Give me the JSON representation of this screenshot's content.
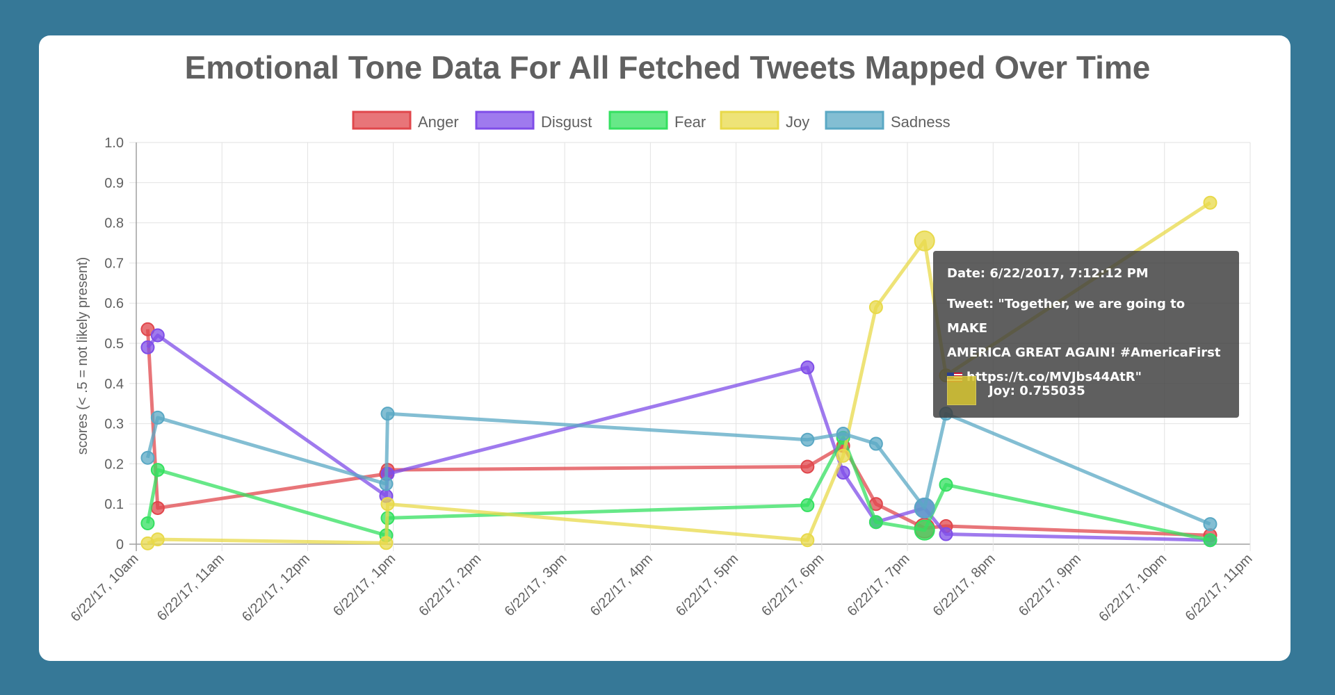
{
  "chart_data": {
    "type": "line",
    "title": "Emotional Tone Data For All Fetched Tweets Mapped Over Time",
    "ylabel": "scores (< .5 = not likely present)",
    "xlabel": "",
    "ylim": [
      0,
      1.0
    ],
    "yticks": [
      "0",
      "0.1",
      "0.2",
      "0.3",
      "0.4",
      "0.5",
      "0.6",
      "0.7",
      "0.8",
      "0.9",
      "1.0"
    ],
    "xticks": [
      "6/22/17, 10am",
      "6/22/17, 11am",
      "6/22/17, 12pm",
      "6/22/17, 1pm",
      "6/22/17, 2pm",
      "6/22/17, 3pm",
      "6/22/17, 4pm",
      "6/22/17, 5pm",
      "6/22/17, 6pm",
      "6/22/17, 7pm",
      "6/22/17, 8pm",
      "6/22/17, 9pm",
      "6/22/17, 10pm",
      "6/22/17, 11pm"
    ],
    "x_range": [
      "6/22/2017 10:00",
      "6/22/2017 23:00"
    ],
    "x": [
      "6/22/2017 10:08",
      "6/22/2017 10:15",
      "6/22/2017 12:55",
      "6/22/2017 12:56",
      "6/22/2017 17:50",
      "6/22/2017 18:15",
      "6/22/2017 18:38",
      "6/22/2017 19:12",
      "6/22/2017 19:27",
      "6/22/2017 22:32"
    ],
    "grid": true,
    "legend": "top",
    "series": [
      {
        "name": "Anger",
        "color": "#e0474c",
        "values": [
          0.535,
          0.09,
          0.175,
          0.185,
          0.193,
          0.245,
          0.1,
          0.04,
          0.045,
          0.022
        ]
      },
      {
        "name": "Disgust",
        "color": "#7f4de8",
        "values": [
          0.49,
          0.52,
          0.12,
          0.175,
          0.44,
          0.178,
          0.055,
          0.09,
          0.025,
          0.01
        ]
      },
      {
        "name": "Fear",
        "color": "#34e060",
        "values": [
          0.052,
          0.185,
          0.022,
          0.065,
          0.097,
          0.265,
          0.055,
          0.035,
          0.148,
          0.01
        ]
      },
      {
        "name": "Joy",
        "color": "#e8d94a",
        "values": [
          0.002,
          0.012,
          0.003,
          0.1,
          0.01,
          0.22,
          0.59,
          0.755,
          0.42,
          0.85
        ]
      },
      {
        "name": "Sadness",
        "color": "#5aa8c4",
        "values": [
          0.215,
          0.315,
          0.15,
          0.325,
          0.26,
          0.275,
          0.25,
          0.09,
          0.325,
          0.05
        ]
      }
    ]
  },
  "tooltip": {
    "date": "Date: 6/22/2017, 7:12:12 PM",
    "tweet": "Tweet: \"Together, we are going to MAKE\nAMERICA GREAT AGAIN! #AmericaFirst",
    "link": "https://t.co/MVJbs44AtR\"",
    "label": "Joy: 0.755035",
    "color": "#d6c531"
  }
}
